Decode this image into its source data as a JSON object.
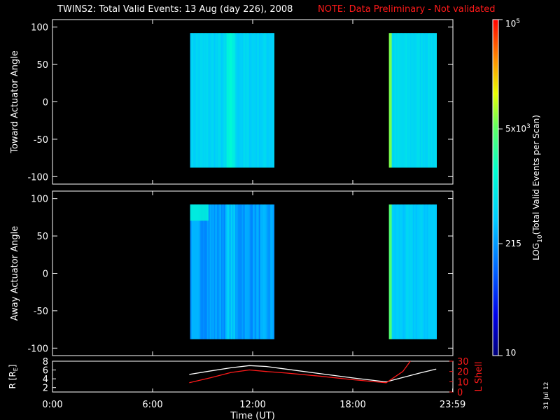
{
  "header": {
    "title": "TWINS2: Total Valid Events: 13 Aug (day 226), 2008",
    "note": "NOTE: Data Preliminary - Not validated"
  },
  "footer": {
    "date_stamp": "31 Jul 12"
  },
  "colors": {
    "note": "#ff1a1a",
    "background": "#000000",
    "axes": "#ffffff",
    "lshell": "#ff1a1a",
    "radius": "#ffffff"
  },
  "chart_data": [
    {
      "type": "heatmap",
      "panel": "toward",
      "ylabel": "Toward Actuator Angle",
      "ylim": [
        -110,
        110
      ],
      "yticks": [
        100,
        50,
        0,
        -50,
        -100
      ],
      "xlim_hours": [
        0,
        24
      ],
      "angle_range": [
        -88,
        92
      ],
      "data_blocks": [
        {
          "start": "08:15",
          "end": "13:15"
        },
        {
          "start": "20:10",
          "end": "23:00"
        }
      ]
    },
    {
      "type": "heatmap",
      "panel": "away",
      "ylabel": "Away Actuator Angle",
      "ylim": [
        -110,
        110
      ],
      "yticks": [
        100,
        50,
        0,
        -50,
        -100
      ],
      "xlim_hours": [
        0,
        24
      ],
      "angle_range": [
        -88,
        92
      ],
      "data_blocks": [
        {
          "start": "08:15",
          "end": "13:15"
        },
        {
          "start": "20:10",
          "end": "23:00"
        }
      ]
    },
    {
      "type": "colorbar",
      "label_parts": {
        "pre": "LOG",
        "sub": "10",
        "post": "(Total Valid Events per Scan)"
      },
      "scale": "log",
      "range": [
        10,
        100000
      ],
      "ticks": [
        {
          "value": 10,
          "base": "10",
          "exp": ""
        },
        {
          "value": 215,
          "base": "215",
          "exp": ""
        },
        {
          "value": 5000,
          "base": "5x10",
          "exp": "3"
        },
        {
          "value": 100000,
          "base": "10",
          "exp": "5"
        }
      ]
    },
    {
      "type": "line",
      "panel": "ephemeris",
      "ylabel_left": {
        "pre": "R [R",
        "sub": "E",
        "post": "]"
      },
      "ylabel_right": "L Shell",
      "ylim_left": [
        1,
        8
      ],
      "ylim_right": [
        0,
        30
      ],
      "yticks_left": [
        8,
        6,
        4,
        2
      ],
      "yticks_right": [
        30,
        20,
        10,
        0
      ],
      "xlabel": "Time (UT)",
      "xticks": [
        {
          "hour": 0,
          "label": "0:00"
        },
        {
          "hour": 6,
          "label": "6:00"
        },
        {
          "hour": 12,
          "label": "12:00"
        },
        {
          "hour": 18,
          "label": "18:00"
        },
        {
          "hour": 23.983,
          "label": "23:59"
        }
      ],
      "series": [
        {
          "axis": "left",
          "color": "#ffffff",
          "points": [
            [
              8.2,
              5.0
            ],
            [
              9.5,
              5.8
            ],
            [
              10.7,
              6.5
            ],
            [
              11.8,
              7.0
            ],
            [
              12.8,
              6.8
            ],
            [
              14,
              6.2
            ],
            [
              16,
              5.2
            ],
            [
              18,
              4.2
            ],
            [
              20,
              3.3
            ],
            [
              21,
              4.3
            ],
            [
              22,
              5.3
            ],
            [
              23,
              6.2
            ]
          ]
        },
        {
          "axis": "right",
          "color": "#ff1a1a",
          "points": [
            [
              8.2,
              9
            ],
            [
              9.5,
              14
            ],
            [
              10.7,
              19
            ],
            [
              11.8,
              21.5
            ],
            [
              12.8,
              20
            ],
            [
              14,
              18.5
            ],
            [
              16,
              15.5
            ],
            [
              18,
              12
            ],
            [
              20,
              9
            ],
            [
              21,
              20
            ],
            [
              21.45,
              30
            ]
          ]
        }
      ]
    }
  ]
}
